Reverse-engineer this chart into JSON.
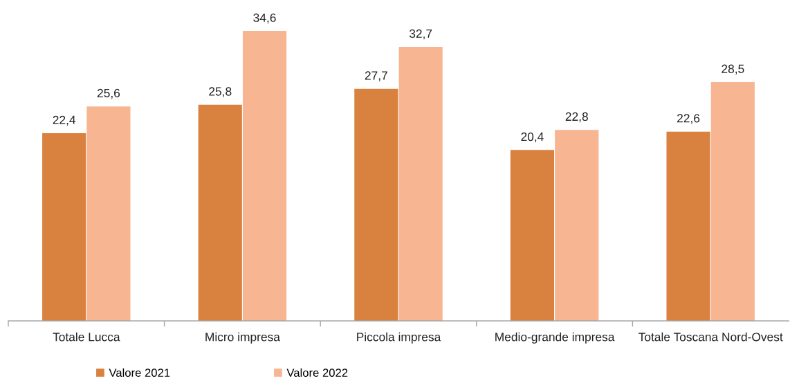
{
  "chart_data": {
    "type": "bar",
    "categories": [
      "Totale Lucca",
      "Micro impresa",
      "Piccola impresa",
      "Medio-grande impresa",
      "Totale Toscana Nord-Ovest"
    ],
    "series": [
      {
        "name": "Valore 2021",
        "color": "#d9823f",
        "values": [
          22.4,
          25.8,
          27.7,
          20.4,
          22.6
        ],
        "value_labels": [
          "22,4",
          "25,8",
          "27,7",
          "20,4",
          "22,6"
        ]
      },
      {
        "name": "Valore 2022",
        "color": "#f8b591",
        "values": [
          25.6,
          34.6,
          32.7,
          22.8,
          28.5
        ],
        "value_labels": [
          "25,6",
          "34,6",
          "32,7",
          "22,8",
          "28,5"
        ]
      }
    ],
    "legend": "bottom",
    "tick_labels": "x"
  }
}
